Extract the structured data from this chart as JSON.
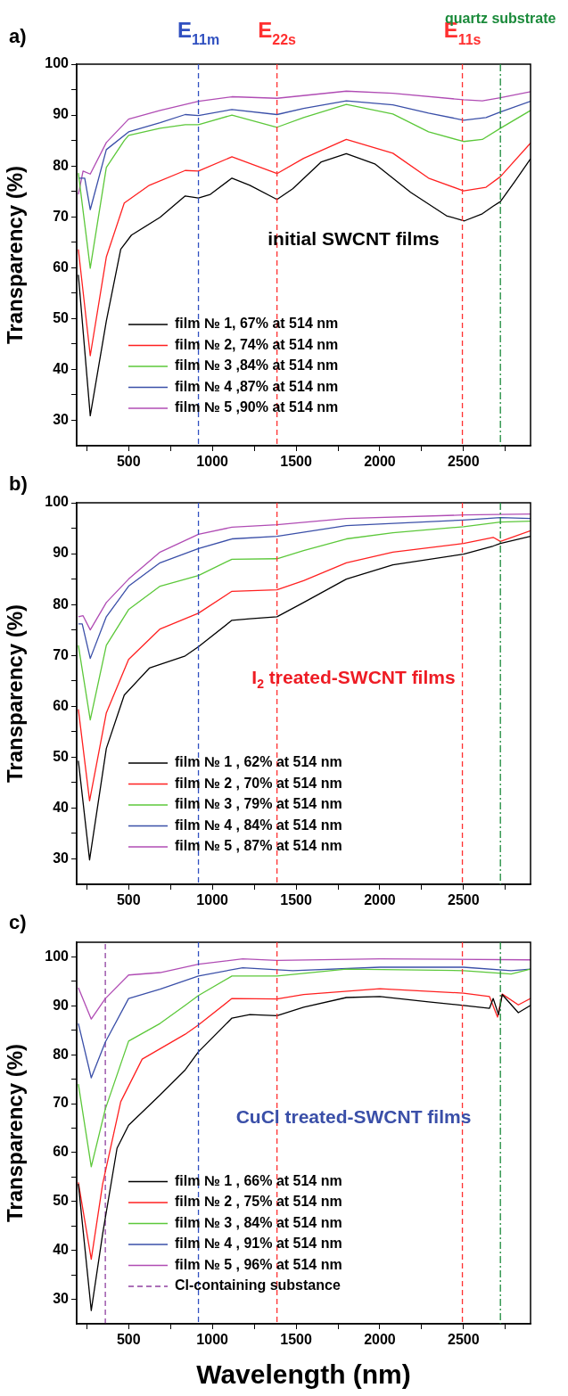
{
  "chart_data": [
    {
      "type": "line",
      "title": "a)",
      "ylabel": "Transparency (%)",
      "annotations": [
        "initial SWCNT films"
      ],
      "legend": "bottom left",
      "grid": false,
      "xlim": [
        190,
        2900
      ],
      "ylim": [
        25,
        100
      ],
      "xticks": [
        {
          "value": 250,
          "label": null
        },
        500,
        {
          "value": 750,
          "label": null
        },
        1000,
        {
          "value": 1250,
          "label": null
        },
        1500,
        {
          "value": 1750,
          "label": null
        },
        2000,
        {
          "value": 2250,
          "label": null
        },
        2500,
        {
          "value": 2750,
          "label": null
        }
      ],
      "yticks": [
        30,
        {
          "value": 35,
          "label": null
        },
        40,
        {
          "value": 45,
          "label": null
        },
        50,
        {
          "value": 55,
          "label": null
        },
        60,
        {
          "value": 65,
          "label": null
        },
        70,
        {
          "value": 75,
          "label": null
        },
        80,
        {
          "value": 85,
          "label": null
        },
        90,
        {
          "value": 95,
          "label": null
        },
        100
      ],
      "ref_lines": [
        {
          "axis": "x",
          "value": 917,
          "label": "E$_{11m}$",
          "color": "#3050c0",
          "line_style": "dashed"
        },
        {
          "axis": "x",
          "value": 1386,
          "label": "E$_{22s}$",
          "color": "#ff3030",
          "line_style": "dashed"
        },
        {
          "axis": "x",
          "value": 2493,
          "label": "E$_{11s}$",
          "color": "#ff3030",
          "line_style": "dashed"
        },
        {
          "axis": "x",
          "value": 2720,
          "label": "quartz substrate",
          "color": "#1a8a3a",
          "line_style": "dashdot"
        }
      ],
      "series": [
        {
          "name": "film № 1, 67% at 514 nm",
          "color": "#000000",
          "x": [
            200,
            271,
            367,
            453,
            517,
            688,
            838,
            917,
            988,
            1117,
            1224,
            1386,
            1480,
            1651,
            1800,
            1970,
            2184,
            2398,
            2505,
            2612,
            2677,
            2720,
            2805,
            2900
          ],
          "values": [
            58.6,
            30.9,
            49.5,
            63.6,
            66.4,
            69.9,
            74.1,
            73.7,
            74.4,
            77.6,
            76.2,
            73.4,
            75.5,
            80.8,
            82.4,
            80.4,
            74.8,
            70.2,
            69.2,
            70.6,
            72.1,
            73.0,
            76.9,
            81.4
          ]
        },
        {
          "name": "film № 2, 74% at 514 nm",
          "color": "#ff2020",
          "x": [
            200,
            271,
            367,
            474,
            624,
            838,
            917,
            1117,
            1386,
            1545,
            1800,
            2078,
            2291,
            2500,
            2634,
            2720,
            2900
          ],
          "values": [
            63.6,
            42.7,
            62.1,
            72.7,
            76.2,
            79.1,
            79.0,
            81.8,
            78.5,
            81.5,
            85.2,
            82.5,
            77.6,
            75.1,
            75.8,
            77.9,
            84.5
          ]
        },
        {
          "name": "film № 3 ,84% at 514 nm",
          "color": "#5cc83a",
          "x": [
            200,
            271,
            367,
            474,
            500,
            688,
            838,
            917,
            1117,
            1386,
            1545,
            1800,
            2078,
            2291,
            2500,
            2612,
            2720,
            2900
          ],
          "values": [
            78.6,
            59.9,
            79.7,
            85.0,
            86.0,
            87.4,
            88.1,
            88.1,
            90.0,
            87.6,
            89.5,
            92.1,
            90.2,
            86.7,
            84.8,
            85.2,
            87.4,
            90.9
          ]
        },
        {
          "name": "film № 4 ,87% at 514 nm",
          "color": "#3a4fa8",
          "x": [
            200,
            238,
            271,
            367,
            500,
            688,
            838,
            917,
            1117,
            1386,
            1545,
            1800,
            2078,
            2291,
            2500,
            2634,
            2720,
            2900
          ],
          "values": [
            77.6,
            77.6,
            71.4,
            83.2,
            86.7,
            88.5,
            90.1,
            89.9,
            91.1,
            90.1,
            91.3,
            92.8,
            92.0,
            90.4,
            89.0,
            89.5,
            90.6,
            92.7
          ]
        },
        {
          "name": "film № 5 ,90% at 514 nm",
          "color": "#b04cb4",
          "x": [
            200,
            228,
            271,
            367,
            500,
            688,
            917,
            1117,
            1386,
            1800,
            2078,
            2500,
            2612,
            2720,
            2900
          ],
          "values": [
            74.4,
            79.0,
            78.4,
            84.6,
            89.2,
            90.9,
            92.7,
            93.6,
            93.3,
            94.7,
            94.3,
            93.0,
            92.8,
            93.4,
            94.6
          ]
        }
      ]
    },
    {
      "type": "line",
      "title": "b)",
      "ylabel": "Transparency (%)",
      "annotations": [
        "I$_{2}$ treated-SWCNT films"
      ],
      "legend": "bottom left",
      "grid": false,
      "xlim": [
        190,
        2900
      ],
      "ylim": [
        25,
        100
      ],
      "xticks": [
        {
          "value": 250,
          "label": null
        },
        500,
        {
          "value": 750,
          "label": null
        },
        1000,
        {
          "value": 1250,
          "label": null
        },
        1500,
        {
          "value": 1750,
          "label": null
        },
        2000,
        {
          "value": 2250,
          "label": null
        },
        2500,
        {
          "value": 2750,
          "label": null
        }
      ],
      "yticks": [
        30,
        {
          "value": 35,
          "label": null
        },
        40,
        {
          "value": 45,
          "label": null
        },
        50,
        {
          "value": 55,
          "label": null
        },
        60,
        {
          "value": 65,
          "label": null
        },
        70,
        {
          "value": 75,
          "label": null
        },
        80,
        {
          "value": 85,
          "label": null
        },
        90,
        {
          "value": 95,
          "label": null
        },
        100
      ],
      "ref_lines": [
        {
          "axis": "x",
          "value": 917,
          "color": "#3050c0",
          "line_style": "dashed"
        },
        {
          "axis": "x",
          "value": 1386,
          "color": "#ff3030",
          "line_style": "dashed"
        },
        {
          "axis": "x",
          "value": 2493,
          "color": "#ff3030",
          "line_style": "dashed"
        },
        {
          "axis": "x",
          "value": 2720,
          "color": "#1a8a3a",
          "line_style": "dashdot"
        }
      ],
      "series": [
        {
          "name": "film № 1 , 62% at 514 nm",
          "color": "#000000",
          "x": [
            200,
            267,
            367,
            474,
            624,
            838,
            917,
            1117,
            1224,
            1386,
            1545,
            1800,
            2078,
            2500,
            2677,
            2720,
            2900
          ],
          "values": [
            49.3,
            29.8,
            51.7,
            62.2,
            67.5,
            69.9,
            71.7,
            76.9,
            77.2,
            77.6,
            80.4,
            85.0,
            87.8,
            89.9,
            91.5,
            92.0,
            93.4
          ]
        },
        {
          "name": "film № 2 , 70% at 514 nm",
          "color": "#ff2020",
          "x": [
            200,
            267,
            367,
            500,
            688,
            917,
            1117,
            1386,
            1545,
            1800,
            2078,
            2500,
            2677,
            2720,
            2900
          ],
          "values": [
            59.4,
            41.4,
            58.7,
            69.2,
            75.2,
            78.3,
            82.6,
            82.9,
            84.7,
            88.2,
            90.3,
            92.0,
            93.2,
            92.4,
            94.5
          ]
        },
        {
          "name": "film № 3 , 79% at 514 nm",
          "color": "#5cc83a",
          "x": [
            200,
            271,
            367,
            500,
            688,
            917,
            1117,
            1386,
            1545,
            1800,
            2078,
            2500,
            2720,
            2900
          ],
          "values": [
            72.0,
            57.3,
            72.0,
            79.0,
            83.6,
            85.7,
            88.9,
            89.0,
            90.6,
            92.9,
            94.1,
            95.3,
            96.2,
            96.4
          ]
        },
        {
          "name": "film № 4 , 84% at 514 nm",
          "color": "#3a4fa8",
          "x": [
            200,
            223,
            271,
            367,
            500,
            688,
            917,
            1117,
            1386,
            1800,
            2500,
            2720,
            2900
          ],
          "values": [
            76.2,
            76.2,
            69.4,
            77.6,
            83.6,
            88.2,
            91.0,
            92.9,
            93.4,
            95.5,
            96.6,
            97.1,
            96.9
          ]
        },
        {
          "name": "film № 5 , 87% at 514 nm",
          "color": "#b04cb4",
          "x": [
            200,
            228,
            271,
            367,
            500,
            688,
            917,
            1117,
            1386,
            1800,
            2500,
            2900
          ],
          "values": [
            77.6,
            77.8,
            75.0,
            80.4,
            85.0,
            90.3,
            93.8,
            95.2,
            95.7,
            96.9,
            97.6,
            97.8
          ]
        }
      ]
    },
    {
      "type": "line",
      "title": "c)",
      "xlabel": "Wavelength (nm)",
      "ylabel": "Transparency (%)",
      "annotations": [
        "CuCl treated-SWCNT films"
      ],
      "legend": "bottom left",
      "grid": false,
      "xlim": [
        190,
        2900
      ],
      "ylim": [
        25,
        103
      ],
      "xticks": [
        {
          "value": 250,
          "label": null
        },
        500,
        {
          "value": 750,
          "label": null
        },
        1000,
        {
          "value": 1250,
          "label": null
        },
        1500,
        {
          "value": 1750,
          "label": null
        },
        2000,
        {
          "value": 2250,
          "label": null
        },
        2500,
        {
          "value": 2750,
          "label": null
        }
      ],
      "yticks": [
        30,
        {
          "value": 35,
          "label": null
        },
        40,
        {
          "value": 45,
          "label": null
        },
        50,
        {
          "value": 55,
          "label": null
        },
        60,
        {
          "value": 65,
          "label": null
        },
        70,
        {
          "value": 75,
          "label": null
        },
        80,
        {
          "value": 85,
          "label": null
        },
        90,
        {
          "value": 95,
          "label": null
        },
        100
      ],
      "ref_lines": [
        {
          "axis": "x",
          "value": 917,
          "color": "#3050c0",
          "line_style": "dashed"
        },
        {
          "axis": "x",
          "value": 1386,
          "color": "#ff3030",
          "line_style": "dashed"
        },
        {
          "axis": "x",
          "value": 2493,
          "color": "#ff3030",
          "line_style": "dashed"
        },
        {
          "axis": "x",
          "value": 2720,
          "color": "#1a8a3a",
          "line_style": "dashdot"
        }
      ],
      "series": [
        {
          "name": "film № 1 , 66% at 514 nm",
          "color": "#000000",
          "x": [
            200,
            277,
            345,
            431,
            500,
            688,
            838,
            917,
            1117,
            1224,
            1386,
            1545,
            1800,
            2000,
            2291,
            2500,
            2655,
            2677,
            2709,
            2731,
            2827,
            2900
          ],
          "values": [
            53.6,
            27.7,
            43.4,
            60.9,
            65.6,
            71.8,
            76.9,
            80.6,
            87.5,
            88.2,
            88.0,
            89.7,
            91.7,
            91.9,
            90.8,
            90.1,
            89.5,
            91.5,
            88.2,
            92.3,
            88.6,
            90.1
          ]
        },
        {
          "name": "film № 2 , 75% at 514 nm",
          "color": "#ff2020",
          "x": [
            200,
            277,
            345,
            453,
            581,
            838,
            917,
            1117,
            1386,
            1545,
            2000,
            2500,
            2655,
            2703,
            2731,
            2827,
            2900
          ],
          "values": [
            53.9,
            38.2,
            53.6,
            70.4,
            79.1,
            84.2,
            86.1,
            91.5,
            91.4,
            92.3,
            93.5,
            92.6,
            91.9,
            87.7,
            92.4,
            90.2,
            91.5
          ]
        },
        {
          "name": "film № 3 , 84% at 514 nm",
          "color": "#5cc83a",
          "x": [
            200,
            277,
            361,
            500,
            688,
            838,
            917,
            1117,
            1386,
            1800,
            2500,
            2784,
            2900
          ],
          "values": [
            74.0,
            57.1,
            68.9,
            82.8,
            86.4,
            90.1,
            92.1,
            96.1,
            96.1,
            97.5,
            97.2,
            96.5,
            97.5
          ]
        },
        {
          "name": "film № 4 , 91% at 514 nm",
          "color": "#3a4fa8",
          "x": [
            200,
            277,
            361,
            500,
            688,
            917,
            1181,
            1480,
            2000,
            2500,
            2784,
            2900
          ],
          "values": [
            86.4,
            75.3,
            82.6,
            91.5,
            93.4,
            96.1,
            97.8,
            97.2,
            97.9,
            97.9,
            97.2,
            97.5
          ]
        },
        {
          "name": "film № 5 , 96% at 514 nm",
          "color": "#b04cb4",
          "x": [
            200,
            277,
            361,
            500,
            688,
            917,
            1181,
            1386,
            2000,
            2900
          ],
          "values": [
            93.7,
            87.3,
            91.5,
            96.3,
            96.8,
            98.5,
            99.6,
            99.3,
            99.6,
            99.4
          ]
        },
        {
          "name": "Cl-containing substance",
          "color": "#9040a0",
          "line_style": "dashed",
          "x": [
            361,
            361
          ],
          "values": [
            25,
            103
          ]
        }
      ]
    }
  ]
}
